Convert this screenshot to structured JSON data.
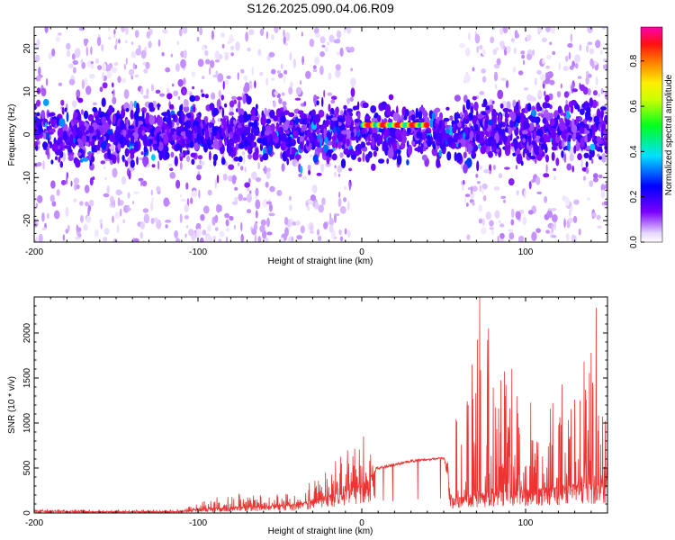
{
  "title": "S126.2025.090.04.06.R09",
  "chart_data": [
    {
      "type": "heatmap",
      "title": "S126.2025.090.04.06.R09",
      "xlabel": "Height of straight line (km)",
      "ylabel": "Frequency (Hz)",
      "xlim": [
        -200,
        150
      ],
      "ylim": [
        -25,
        25
      ],
      "xticks": [
        -200,
        -100,
        0,
        100
      ],
      "xtick_labels": [
        "-200",
        "-100",
        "0",
        "100"
      ],
      "yticks": [
        20,
        10,
        0,
        -10,
        -20
      ],
      "ytick_labels": [
        "20",
        "10",
        "0",
        "-10",
        "-20"
      ],
      "colorbar": {
        "label": "Normalized spectral amplitude",
        "range": [
          0.0,
          0.95
        ],
        "ticks": [
          0.0,
          0.2,
          0.4,
          0.6,
          0.8
        ],
        "tick_labels": [
          "0.0",
          "0.2",
          "0.4",
          "0.6",
          "0.8"
        ],
        "colormap": "rainbow (white/lavender at 0 through purple, blue, cyan, green, yellow, orange, red, magenta at max)"
      },
      "features": [
        {
          "kind": "broadband band",
          "x_range": [
            -200,
            150
          ],
          "freq_center": 0.5,
          "freq_halfwidth": 3,
          "amplitude": 0.15
        },
        {
          "kind": "scattered speckle",
          "x_range": [
            -200,
            -5
          ],
          "freq_range": [
            -25,
            25
          ],
          "amplitude": 0.05
        },
        {
          "kind": "scattered speckle",
          "x_range": [
            60,
            150
          ],
          "freq_range": [
            -25,
            25
          ],
          "amplitude": 0.05
        },
        {
          "kind": "clean window",
          "x_range": [
            0,
            55
          ],
          "freq_range": [
            -25,
            25
          ],
          "amplitude": 0.0
        },
        {
          "kind": "strong line",
          "x_range": [
            0,
            40
          ],
          "freq_center": 2.2,
          "amplitude": 0.9
        }
      ]
    },
    {
      "type": "line",
      "xlabel": "Height of straight line (km)",
      "ylabel": "SNR (10 * v/v)",
      "xlim": [
        -200,
        150
      ],
      "ylim": [
        0,
        2400
      ],
      "xticks": [
        -200,
        -100,
        0,
        100
      ],
      "xtick_labels": [
        "-200",
        "-100",
        "0",
        "100"
      ],
      "yticks": [
        0,
        500,
        1000,
        1500,
        2000
      ],
      "ytick_labels": [
        "0",
        "500",
        "1000",
        "1500",
        "2000"
      ],
      "color": "#ee3333",
      "envelope": [
        {
          "x": -200,
          "base": 20,
          "peak": 40
        },
        {
          "x": -150,
          "base": 15,
          "peak": 35
        },
        {
          "x": -110,
          "base": 15,
          "peak": 40
        },
        {
          "x": -100,
          "base": 40,
          "peak": 130
        },
        {
          "x": -80,
          "base": 60,
          "peak": 220
        },
        {
          "x": -60,
          "base": 70,
          "peak": 200
        },
        {
          "x": -40,
          "base": 90,
          "peak": 250
        },
        {
          "x": -20,
          "base": 180,
          "peak": 500
        },
        {
          "x": -5,
          "base": 280,
          "peak": 800
        },
        {
          "x": 0,
          "base": 300,
          "peak": 780
        },
        {
          "x": 10,
          "base": 480,
          "peak": 550
        },
        {
          "x": 30,
          "base": 560,
          "peak": 620
        },
        {
          "x": 50,
          "base": 600,
          "peak": 640
        },
        {
          "x": 55,
          "base": 150,
          "peak": 900
        },
        {
          "x": 70,
          "base": 200,
          "peak": 2400
        },
        {
          "x": 100,
          "base": 250,
          "peak": 1300
        },
        {
          "x": 130,
          "base": 300,
          "peak": 1700
        },
        {
          "x": 143,
          "base": 300,
          "peak": 2280
        },
        {
          "x": 150,
          "base": 350,
          "peak": 1000
        }
      ],
      "notable_peaks": [
        {
          "x": 72,
          "y": 2400
        },
        {
          "x": 143,
          "y": 2280
        },
        {
          "x": 140,
          "y": 1780
        },
        {
          "x": 65,
          "y": 1200
        },
        {
          "x": 1,
          "y": 850
        }
      ]
    }
  ]
}
